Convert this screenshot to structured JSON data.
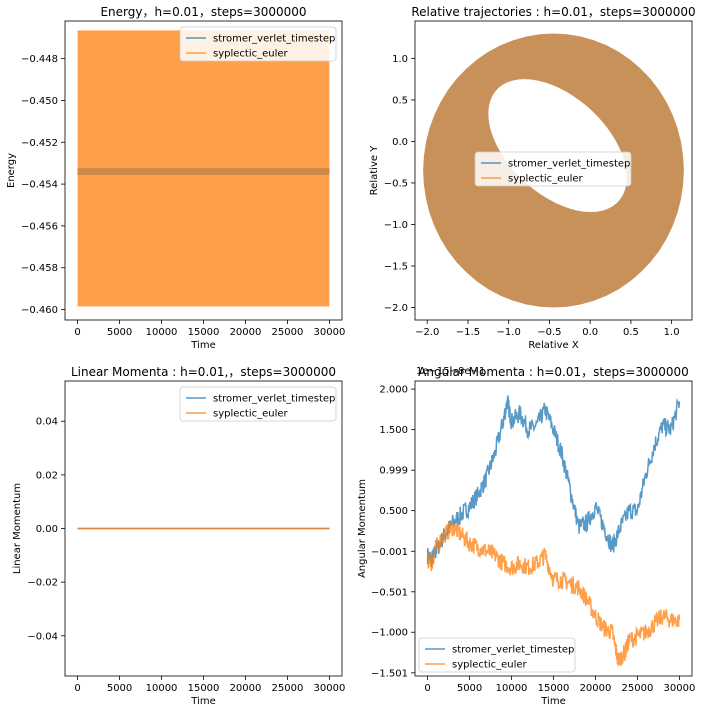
{
  "chart_data": [
    {
      "type": "line",
      "title": "Energy，h=0.01，steps=3000000",
      "xlabel": "Time",
      "ylabel": "Energy",
      "xlim": [
        -1500,
        31500
      ],
      "ylim": [
        -0.4605,
        -0.4462
      ],
      "xticks": [
        0,
        5000,
        10000,
        15000,
        20000,
        25000,
        30000
      ],
      "xtick_labels": [
        "0",
        "5000",
        "10000",
        "15000",
        "20000",
        "25000",
        "30000"
      ],
      "yticks": [
        -0.448,
        -0.45,
        -0.452,
        -0.454,
        -0.456,
        -0.458,
        -0.46
      ],
      "ytick_labels": [
        "−0.448",
        "−0.450",
        "−0.452",
        "−0.454",
        "−0.456",
        "−0.458",
        "−0.460"
      ],
      "legend": "top-right",
      "series": [
        {
          "name": "stromer_verlet_timestep",
          "color": "#1f77b4",
          "band": {
            "x": [
              0,
              30000
            ],
            "y": [
              -0.45355,
              -0.45325
            ]
          }
        },
        {
          "name": "syplectic_euler",
          "color": "#ff7f0e",
          "band": {
            "x": [
              0,
              30000
            ],
            "y": [
              -0.45985,
              -0.44665
            ]
          }
        }
      ]
    },
    {
      "type": "scatter",
      "title": "Relative trajectories : h=0.01，steps=3000000",
      "xlabel": "Relative X",
      "ylabel": "Relative Y",
      "xlim": [
        -2.15,
        1.25
      ],
      "ylim": [
        -2.15,
        1.45
      ],
      "xticks": [
        -2.0,
        -1.5,
        -1.0,
        -0.5,
        0.0,
        0.5,
        1.0
      ],
      "xtick_labels": [
        "−2.0",
        "−1.5",
        "−1.0",
        "−0.5",
        "0.0",
        "0.5",
        "1.0"
      ],
      "yticks": [
        1.0,
        0.5,
        0.0,
        -0.5,
        -1.0,
        -1.5,
        -2.0
      ],
      "ytick_labels": [
        "1.0",
        "0.5",
        "0.0",
        "−0.5",
        "−1.0",
        "−1.5",
        "−2.0"
      ],
      "legend": "center",
      "series": [
        {
          "name": "stromer_verlet_timestep",
          "color": "#1f77b4"
        },
        {
          "name": "syplectic_euler",
          "color": "#ff7f0e"
        }
      ],
      "fill_color": "#c9915a"
    },
    {
      "type": "line",
      "title": "Linear Momenta : h=0.01,，steps=3000000",
      "xlabel": "Time",
      "ylabel": "Linear Momentum",
      "xlim": [
        -1500,
        31500
      ],
      "ylim": [
        -0.055,
        0.055
      ],
      "xticks": [
        0,
        5000,
        10000,
        15000,
        20000,
        25000,
        30000
      ],
      "xtick_labels": [
        "0",
        "5000",
        "10000",
        "15000",
        "20000",
        "25000",
        "30000"
      ],
      "yticks": [
        0.04,
        0.02,
        0.0,
        -0.02,
        -0.04
      ],
      "ytick_labels": [
        "0.04",
        "0.02",
        "0.00",
        "−0.02",
        "−0.04"
      ],
      "legend": "top-right",
      "series": [
        {
          "name": "stromer_verlet_timestep",
          "color": "#1f77b4",
          "x": [
            0,
            30000
          ],
          "values": [
            0,
            0
          ]
        },
        {
          "name": "syplectic_euler",
          "color": "#ff7f0e",
          "x": [
            0,
            30000
          ],
          "values": [
            0,
            0
          ]
        }
      ]
    },
    {
      "type": "line",
      "title": "Angular Momenta : h=0.01，steps=3000000",
      "offset_text": "1e−15−8e−1",
      "xlabel": "Time",
      "ylabel": "Angular Momentum",
      "xlim": [
        -1500,
        31500
      ],
      "ylim": [
        -1.54,
        2.1
      ],
      "xticks": [
        0,
        5000,
        10000,
        15000,
        20000,
        25000,
        30000
      ],
      "xtick_labels": [
        "0",
        "5000",
        "10000",
        "15000",
        "20000",
        "25000",
        "30000"
      ],
      "yticks": [
        2.0,
        1.5,
        0.999,
        0.5,
        -0.001,
        -0.501,
        -1.0,
        -1.501
      ],
      "ytick_labels": [
        "2.000",
        "1.500",
        "0.999",
        "0.500",
        "−0.001",
        "−0.501",
        "−1.000",
        "−1.501"
      ],
      "legend": "bottom-left",
      "series": [
        {
          "name": "stromer_verlet_timestep",
          "color": "#1f77b4",
          "x": [
            0,
            500,
            1000,
            2000,
            3000,
            4000,
            5000,
            6000,
            7000,
            8000,
            9000,
            9500,
            10000,
            11000,
            12000,
            13000,
            14000,
            15000,
            16000,
            17000,
            18000,
            19000,
            20000,
            21000,
            22000,
            23000,
            24000,
            25000,
            26000,
            27000,
            28000,
            29000,
            30000
          ],
          "values": [
            -0.05,
            -0.1,
            0.0,
            0.2,
            0.35,
            0.45,
            0.55,
            0.7,
            0.9,
            1.2,
            1.6,
            1.85,
            1.6,
            1.7,
            1.5,
            1.55,
            1.75,
            1.5,
            1.2,
            0.75,
            0.3,
            0.35,
            0.55,
            0.3,
            0.05,
            0.3,
            0.5,
            0.5,
            0.95,
            1.3,
            1.55,
            1.5,
            1.85
          ]
        },
        {
          "name": "syplectic_euler",
          "color": "#ff7f0e",
          "x": [
            0,
            500,
            1000,
            2000,
            3000,
            4000,
            5000,
            6000,
            7000,
            8000,
            9000,
            10000,
            11000,
            12000,
            13000,
            14000,
            15000,
            16000,
            17000,
            18000,
            19000,
            20000,
            21000,
            22000,
            22700,
            23500,
            24000,
            25000,
            26000,
            27000,
            28000,
            29000,
            30000
          ],
          "values": [
            -0.1,
            -0.15,
            0.05,
            0.2,
            0.3,
            0.2,
            0.1,
            0.05,
            0.0,
            -0.05,
            -0.15,
            -0.2,
            -0.15,
            -0.2,
            -0.15,
            -0.05,
            -0.35,
            -0.35,
            -0.4,
            -0.45,
            -0.6,
            -0.8,
            -0.95,
            -1.0,
            -1.35,
            -1.25,
            -1.1,
            -1.05,
            -1.0,
            -0.9,
            -0.8,
            -0.85,
            -0.85
          ]
        }
      ]
    }
  ]
}
